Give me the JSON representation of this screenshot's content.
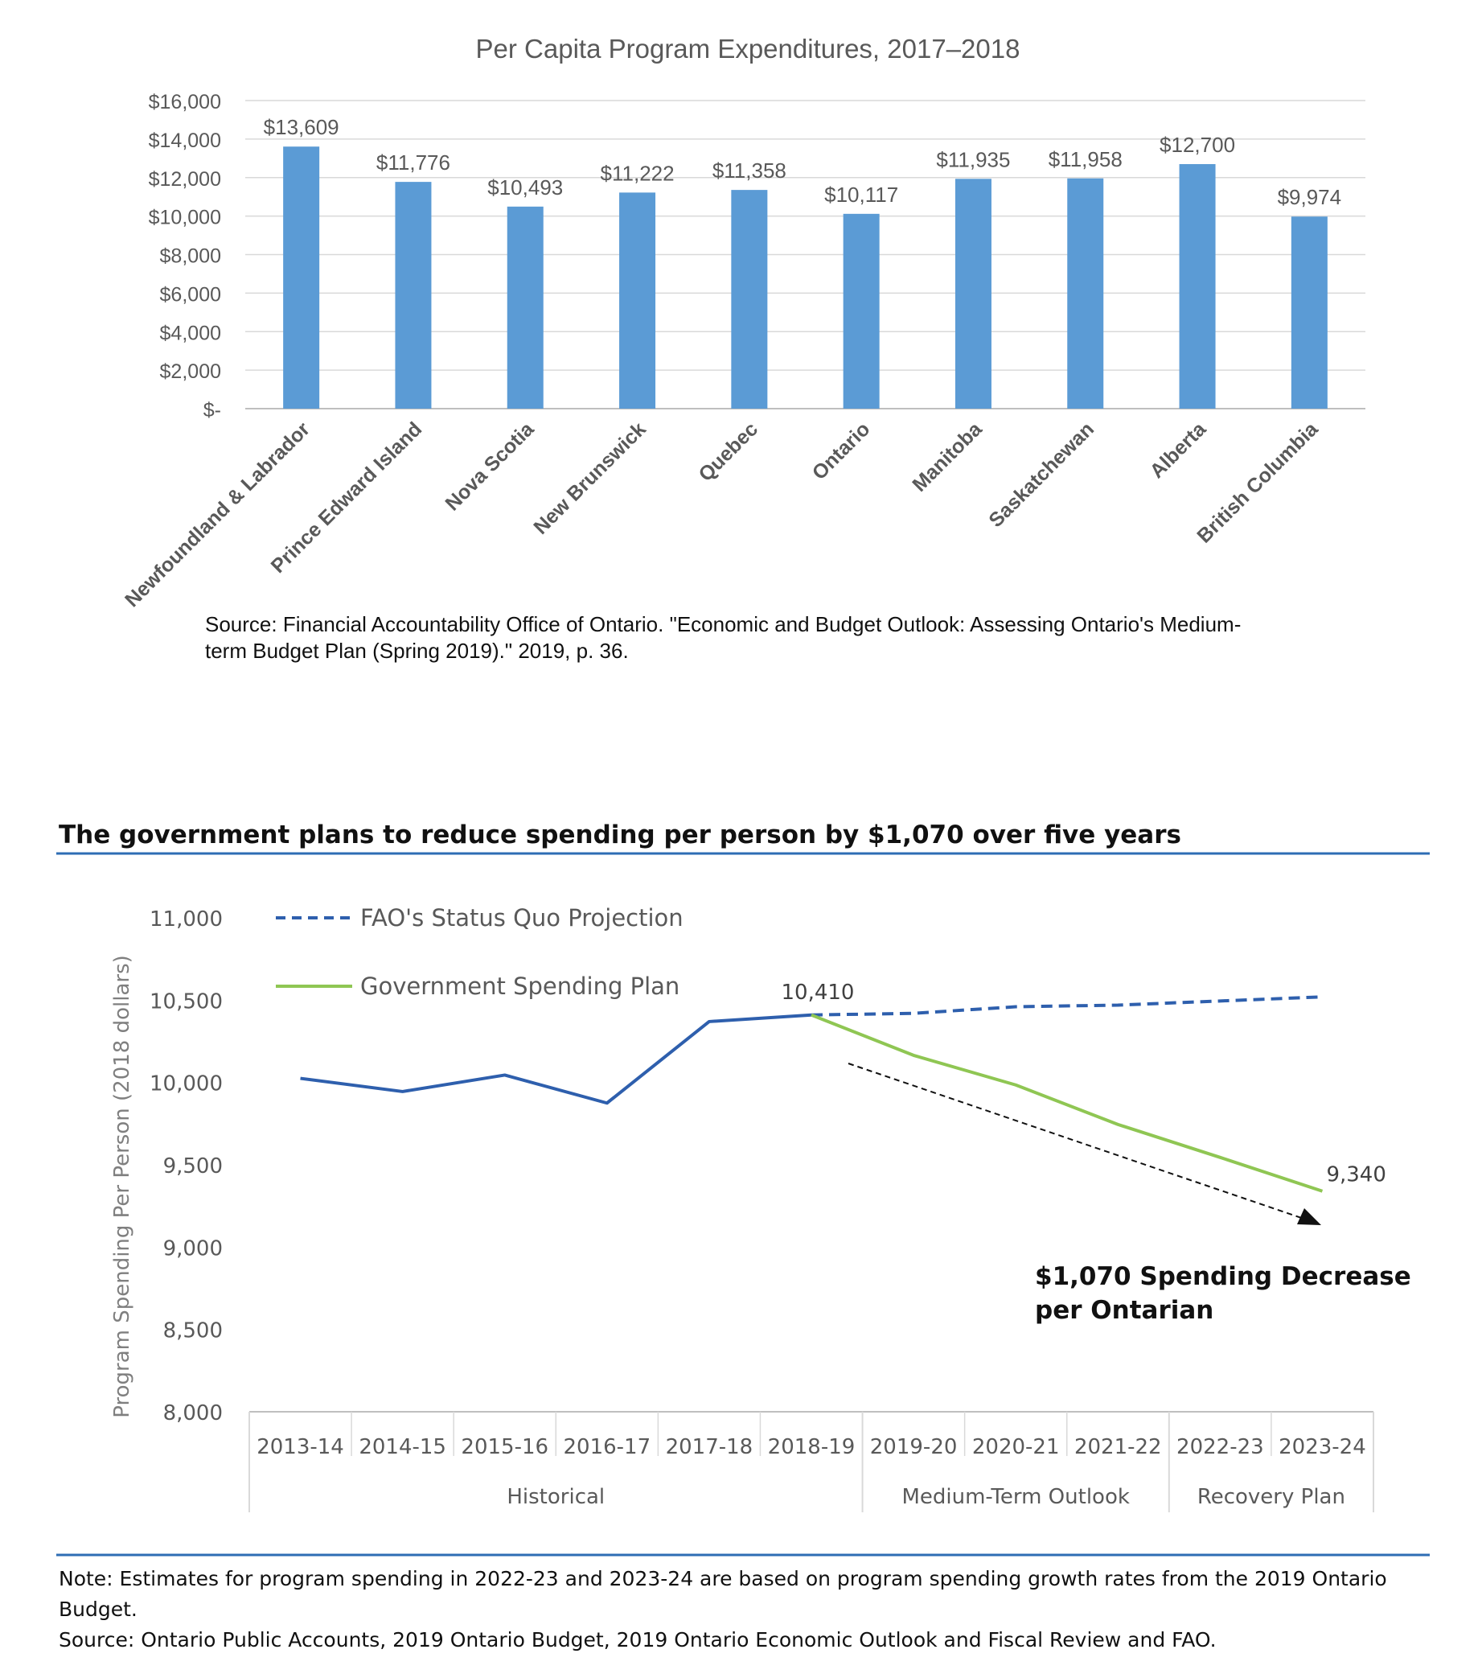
{
  "chart_data": [
    {
      "type": "bar",
      "title": "Per Capita Program Expenditures, 2017–2018",
      "categories": [
        "Newfoundland & Labrador",
        "Prince Edward Island",
        "Nova Scotia",
        "New Brunswick",
        "Quebec",
        "Ontario",
        "Manitoba",
        "Saskatchewan",
        "Alberta",
        "British Columbia"
      ],
      "values": [
        13609,
        11776,
        10493,
        11222,
        11358,
        10117,
        11935,
        11958,
        12700,
        9974
      ],
      "value_labels": [
        "$13,609",
        "$11,776",
        "$10,493",
        "$11,222",
        "$11,358",
        "$10,117",
        "$11,935",
        "$11,958",
        "$12,700",
        "$9,974"
      ],
      "yticks": [
        0,
        2000,
        4000,
        6000,
        8000,
        10000,
        12000,
        14000,
        16000
      ],
      "ytick_labels": [
        "$-",
        "$2,000",
        "$4,000",
        "$6,000",
        "$8,000",
        "$10,000",
        "$12,000",
        "$14,000",
        "$16,000"
      ],
      "ylim": [
        0,
        16000
      ],
      "grid": true,
      "bar_color": "#5b9bd5",
      "source": "Source: Financial Accountability Office of Ontario. \"Economic and Budget Outlook: Assessing Ontario's Medium-term Budget Plan (Spring 2019).\" 2019, p. 36."
    },
    {
      "type": "line",
      "title": "The government plans to reduce spending per person by $1,070 over five years",
      "ylabel": "Program Spending Per Person (2018 dollars)",
      "ylim": [
        8000,
        11000
      ],
      "yticks": [
        8000,
        8500,
        9000,
        9500,
        10000,
        10500,
        11000
      ],
      "ytick_labels": [
        "8,000",
        "8,500",
        "9,000",
        "9,500",
        "10,000",
        "10,500",
        "11,000"
      ],
      "categories": [
        "2013-14",
        "2014-15",
        "2015-16",
        "2016-17",
        "2017-18",
        "2018-19",
        "2019-20",
        "2020-21",
        "2021-22",
        "2022-23",
        "2023-24"
      ],
      "groups": [
        {
          "label": "Historical",
          "span": 6
        },
        {
          "label": "Medium-Term Outlook",
          "span": 3
        },
        {
          "label": "Recovery Plan",
          "span": 2
        }
      ],
      "series": [
        {
          "name": "",
          "color": "#2e5fad",
          "style": "solid",
          "values": [
            10025,
            9945,
            10045,
            9875,
            10370,
            10410,
            null,
            null,
            null,
            null,
            null
          ]
        },
        {
          "name": "FAO's Status Quo Projection",
          "color": "#2e5fad",
          "style": "dashed",
          "values": [
            null,
            null,
            null,
            null,
            null,
            10410,
            10420,
            10460,
            10470,
            10495,
            10520
          ]
        },
        {
          "name": "Government Spending Plan",
          "color": "#8fc653",
          "style": "solid",
          "values": [
            null,
            null,
            null,
            null,
            null,
            10410,
            10165,
            9985,
            9745,
            9545,
            9340
          ]
        }
      ],
      "point_labels": [
        {
          "text": "10,410",
          "x": "2018-19",
          "y": 10410
        },
        {
          "text": "9,340",
          "x": "2023-24",
          "y": 9340
        }
      ],
      "annotation": {
        "line1": "$1,070 Spending Decrease",
        "line2": "per Ontarian"
      },
      "legend_position": "top-left",
      "note": "Note: Estimates for program spending in 2022-23 and 2023-24 are based on program spending growth rates from the 2019 Ontario Budget.",
      "source": "Source: Ontario Public Accounts, 2019 Ontario Budget, 2019 Ontario Economic Outlook and Fiscal Review and FAO."
    }
  ]
}
